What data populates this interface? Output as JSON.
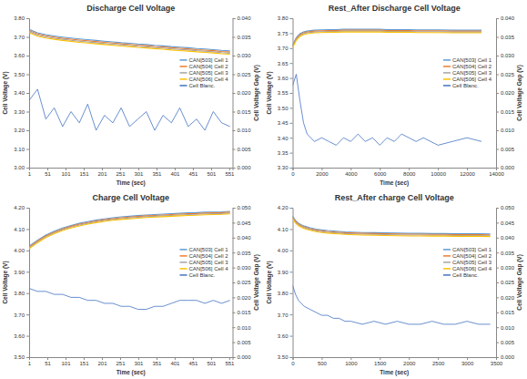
{
  "chart_data": [
    {
      "type": "line",
      "title": "Discharge Cell Voltage",
      "x_label": "Time (sec)",
      "y_label": "Cell Voltage (V)",
      "y2_label": "Cell Voltage Gap (V)",
      "legend": "right",
      "grid": false,
      "x": [
        1,
        24,
        47,
        70,
        93,
        116,
        139,
        162,
        185,
        208,
        231,
        254,
        277,
        300,
        323,
        346,
        369,
        392,
        415,
        438,
        461,
        484,
        507,
        530,
        553
      ],
      "xlim": [
        1,
        560
      ],
      "xticks": [
        1,
        51,
        101,
        151,
        201,
        251,
        301,
        351,
        401,
        451,
        501,
        551
      ],
      "ylim": [
        3.0,
        3.8
      ],
      "yticks": [
        {
          "value": 3.0,
          "label": "3.00"
        },
        {
          "value": 3.1,
          "label": "3.10"
        },
        {
          "value": 3.2,
          "label": "3.20"
        },
        {
          "value": 3.3,
          "label": "3.30"
        },
        {
          "value": 3.4,
          "label": "3.40"
        },
        {
          "value": 3.5,
          "label": "3.50"
        },
        {
          "value": 3.6,
          "label": "3.60"
        },
        {
          "value": 3.7,
          "label": "3.70"
        },
        {
          "value": 3.8,
          "label": "3.80"
        }
      ],
      "y2lim": [
        0,
        0.04
      ],
      "y2ticks": [
        {
          "value": 0,
          "label": "0.000"
        },
        0.005,
        {
          "value": 0.01,
          "label": "0.010"
        },
        0.015,
        {
          "value": 0.02,
          "label": "0.020"
        },
        0.025,
        {
          "value": 0.03,
          "label": "0.030"
        },
        0.035,
        {
          "value": 0.04,
          "label": "0.040"
        }
      ],
      "series": [
        {
          "name": "CAN[503] Cell 1",
          "color": "#5b9bd5",
          "values": [
            3.74,
            3.722,
            3.712,
            3.705,
            3.699,
            3.694,
            3.689,
            3.685,
            3.681,
            3.677,
            3.673,
            3.669,
            3.666,
            3.662,
            3.659,
            3.655,
            3.652,
            3.648,
            3.645,
            3.642,
            3.638,
            3.635,
            3.632,
            3.628,
            3.625
          ]
        },
        {
          "name": "CAN[504] Cell 2",
          "color": "#ed7d31",
          "values": [
            3.734,
            3.716,
            3.706,
            3.699,
            3.693,
            3.688,
            3.683,
            3.679,
            3.675,
            3.671,
            3.667,
            3.663,
            3.66,
            3.656,
            3.653,
            3.649,
            3.646,
            3.642,
            3.639,
            3.636,
            3.632,
            3.629,
            3.626,
            3.622,
            3.619
          ]
        },
        {
          "name": "CAN[505] Cell 3",
          "color": "#a5a5a5",
          "values": [
            3.728,
            3.71,
            3.7,
            3.693,
            3.687,
            3.682,
            3.677,
            3.673,
            3.669,
            3.665,
            3.661,
            3.657,
            3.654,
            3.65,
            3.647,
            3.643,
            3.64,
            3.636,
            3.633,
            3.63,
            3.626,
            3.623,
            3.62,
            3.616,
            3.613
          ]
        },
        {
          "name": "CAN[506] Cell 4",
          "color": "#ffc000",
          "values": [
            3.722,
            3.704,
            3.694,
            3.687,
            3.681,
            3.676,
            3.671,
            3.667,
            3.663,
            3.659,
            3.655,
            3.651,
            3.648,
            3.644,
            3.641,
            3.637,
            3.634,
            3.63,
            3.627,
            3.624,
            3.62,
            3.617,
            3.614,
            3.61,
            3.607
          ]
        },
        {
          "name": "Cell Blanc.",
          "color": "#4472c4",
          "axis": "y2",
          "values": [
            0.018,
            0.021,
            0.013,
            0.016,
            0.011,
            0.015,
            0.012,
            0.017,
            0.01,
            0.014,
            0.012,
            0.016,
            0.011,
            0.013,
            0.015,
            0.01,
            0.014,
            0.012,
            0.016,
            0.011,
            0.013,
            0.01,
            0.015,
            0.012,
            0.011
          ]
        }
      ]
    },
    {
      "type": "line",
      "title": "Rest_After Discharge Cell Voltage",
      "x_label": "Time (sec)",
      "y_label": "Cell Voltage (V)",
      "y2_label": "Cell Voltage Gap (V)",
      "legend": "right",
      "grid": false,
      "x": [
        0,
        250,
        500,
        750,
        1000,
        1500,
        2000,
        2500,
        3000,
        3500,
        4000,
        4500,
        5000,
        5500,
        6000,
        6500,
        7000,
        7500,
        8000,
        8500,
        9000,
        10000,
        11000,
        12000,
        13000
      ],
      "xlim": [
        0,
        14000
      ],
      "xticks": [
        0,
        2000,
        4000,
        6000,
        8000,
        10000,
        12000,
        14000
      ],
      "ylim": [
        3.3,
        3.8
      ],
      "yticks": [
        {
          "value": 3.3,
          "label": "3.30"
        },
        3.35,
        {
          "value": 3.4,
          "label": "3.40"
        },
        3.45,
        {
          "value": 3.5,
          "label": "3.50"
        },
        3.55,
        {
          "value": 3.6,
          "label": "3.60"
        },
        3.65,
        {
          "value": 3.7,
          "label": "3.70"
        },
        3.75,
        {
          "value": 3.8,
          "label": "3.80"
        }
      ],
      "y2lim": [
        0,
        0.04
      ],
      "y2ticks": [
        {
          "value": 0,
          "label": "0.000"
        },
        0.005,
        {
          "value": 0.01,
          "label": "0.010"
        },
        0.015,
        {
          "value": 0.02,
          "label": "0.020"
        },
        0.025,
        {
          "value": 0.03,
          "label": "0.030"
        },
        0.035,
        {
          "value": 0.04,
          "label": "0.040"
        }
      ],
      "series": [
        {
          "name": "CAN[503] Cell 1",
          "color": "#5b9bd5",
          "values": [
            3.71,
            3.735,
            3.748,
            3.754,
            3.757,
            3.76,
            3.761,
            3.762,
            3.762,
            3.763,
            3.763,
            3.763,
            3.763,
            3.763,
            3.763,
            3.762,
            3.762,
            3.762,
            3.762,
            3.761,
            3.761,
            3.761,
            3.76,
            3.76,
            3.76
          ]
        },
        {
          "name": "CAN[504] Cell 2",
          "color": "#ed7d31",
          "values": [
            3.707,
            3.732,
            3.745,
            3.751,
            3.754,
            3.757,
            3.758,
            3.759,
            3.759,
            3.76,
            3.76,
            3.76,
            3.76,
            3.76,
            3.76,
            3.759,
            3.759,
            3.759,
            3.759,
            3.758,
            3.758,
            3.758,
            3.757,
            3.757,
            3.757
          ]
        },
        {
          "name": "CAN[505] Cell 3",
          "color": "#a5a5a5",
          "values": [
            3.704,
            3.729,
            3.742,
            3.748,
            3.751,
            3.754,
            3.755,
            3.756,
            3.756,
            3.757,
            3.757,
            3.757,
            3.757,
            3.757,
            3.757,
            3.756,
            3.756,
            3.756,
            3.756,
            3.755,
            3.755,
            3.755,
            3.754,
            3.754,
            3.754
          ]
        },
        {
          "name": "CAN[506] Cell 4",
          "color": "#ffc000",
          "values": [
            3.701,
            3.726,
            3.739,
            3.745,
            3.748,
            3.751,
            3.752,
            3.753,
            3.753,
            3.754,
            3.754,
            3.754,
            3.754,
            3.754,
            3.754,
            3.753,
            3.753,
            3.753,
            3.753,
            3.752,
            3.752,
            3.752,
            3.751,
            3.751,
            3.751
          ]
        },
        {
          "name": "Cell Blanc.",
          "color": "#4472c4",
          "axis": "y2",
          "values": [
            0.022,
            0.025,
            0.018,
            0.012,
            0.009,
            0.007,
            0.008,
            0.007,
            0.006,
            0.008,
            0.007,
            0.009,
            0.007,
            0.008,
            0.006,
            0.008,
            0.007,
            0.009,
            0.008,
            0.007,
            0.008,
            0.006,
            0.007,
            0.008,
            0.007
          ]
        }
      ]
    },
    {
      "type": "line",
      "title": "Charge Cell Voltage",
      "x_label": "Time (sec)",
      "y_label": "Cell Voltage (V)",
      "y2_label": "Cell Voltage Gap (V)",
      "legend": "right",
      "grid": false,
      "x": [
        1,
        24,
        47,
        70,
        93,
        116,
        139,
        162,
        185,
        208,
        231,
        254,
        277,
        300,
        323,
        346,
        369,
        392,
        415,
        438,
        461,
        484,
        507,
        530,
        553
      ],
      "xlim": [
        1,
        560
      ],
      "xticks": [
        1,
        51,
        101,
        151,
        201,
        251,
        301,
        351,
        401,
        451,
        501,
        551
      ],
      "ylim": [
        3.5,
        4.2
      ],
      "yticks": [
        {
          "value": 3.5,
          "label": "3.50"
        },
        {
          "value": 3.6,
          "label": "3.60"
        },
        {
          "value": 3.7,
          "label": "3.70"
        },
        {
          "value": 3.8,
          "label": "3.80"
        },
        {
          "value": 3.9,
          "label": "3.90"
        },
        {
          "value": 4.0,
          "label": "4.00"
        },
        {
          "value": 4.1,
          "label": "4.10"
        },
        {
          "value": 4.2,
          "label": "4.20"
        }
      ],
      "y2lim": [
        0,
        0.05
      ],
      "y2ticks": [
        {
          "value": 0,
          "label": "0.000"
        },
        0.005,
        {
          "value": 0.01,
          "label": "0.010"
        },
        0.015,
        {
          "value": 0.02,
          "label": "0.020"
        },
        0.025,
        {
          "value": 0.03,
          "label": "0.030"
        },
        0.035,
        {
          "value": 0.04,
          "label": "0.040"
        },
        0.045,
        {
          "value": 0.05,
          "label": "0.050"
        }
      ],
      "series": [
        {
          "name": "CAN[503] Cell 1",
          "color": "#5b9bd5",
          "values": [
            4.02,
            4.048,
            4.072,
            4.09,
            4.105,
            4.117,
            4.127,
            4.135,
            4.142,
            4.148,
            4.153,
            4.157,
            4.16,
            4.163,
            4.166,
            4.168,
            4.17,
            4.172,
            4.174,
            4.176,
            4.177,
            4.179,
            4.18,
            4.181,
            4.183
          ]
        },
        {
          "name": "CAN[504] Cell 2",
          "color": "#ed7d31",
          "values": [
            4.016,
            4.044,
            4.068,
            4.086,
            4.101,
            4.113,
            4.123,
            4.131,
            4.138,
            4.144,
            4.149,
            4.153,
            4.156,
            4.159,
            4.162,
            4.164,
            4.166,
            4.168,
            4.17,
            4.172,
            4.173,
            4.175,
            4.176,
            4.177,
            4.179
          ]
        },
        {
          "name": "CAN[505] Cell 3",
          "color": "#a5a5a5",
          "values": [
            4.012,
            4.04,
            4.064,
            4.082,
            4.097,
            4.109,
            4.119,
            4.127,
            4.134,
            4.14,
            4.145,
            4.149,
            4.152,
            4.155,
            4.158,
            4.16,
            4.162,
            4.164,
            4.166,
            4.168,
            4.169,
            4.171,
            4.172,
            4.173,
            4.175
          ]
        },
        {
          "name": "CAN[506] Cell 4",
          "color": "#ffc000",
          "values": [
            4.008,
            4.036,
            4.06,
            4.078,
            4.093,
            4.105,
            4.115,
            4.123,
            4.13,
            4.136,
            4.141,
            4.145,
            4.148,
            4.151,
            4.154,
            4.156,
            4.158,
            4.16,
            4.162,
            4.164,
            4.165,
            4.167,
            4.168,
            4.169,
            4.171
          ]
        },
        {
          "name": "Cell Blanc.",
          "color": "#4472c4",
          "axis": "y2",
          "values": [
            0.023,
            0.022,
            0.022,
            0.021,
            0.021,
            0.02,
            0.02,
            0.019,
            0.019,
            0.018,
            0.018,
            0.017,
            0.017,
            0.016,
            0.016,
            0.017,
            0.017,
            0.018,
            0.019,
            0.019,
            0.019,
            0.018,
            0.019,
            0.018,
            0.019
          ]
        }
      ]
    },
    {
      "type": "line",
      "title": "Rest_After charge Cell Voltage",
      "x_label": "Time (sec)",
      "y_label": "Cell Voltage (V)",
      "y2_label": "Cell Voltage Gap (V)",
      "legend": "right",
      "grid": false,
      "x": [
        0,
        50,
        100,
        150,
        200,
        300,
        400,
        500,
        600,
        700,
        800,
        900,
        1000,
        1200,
        1400,
        1600,
        1800,
        2000,
        2200,
        2400,
        2600,
        2800,
        3000,
        3200,
        3400
      ],
      "xlim": [
        0,
        3500
      ],
      "xticks": [
        0,
        500,
        1000,
        1500,
        2000,
        2500,
        3000,
        3500
      ],
      "ylim": [
        3.5,
        4.2
      ],
      "yticks": [
        {
          "value": 3.5,
          "label": "3.50"
        },
        {
          "value": 3.6,
          "label": "3.60"
        },
        {
          "value": 3.7,
          "label": "3.70"
        },
        {
          "value": 3.8,
          "label": "3.80"
        },
        {
          "value": 3.9,
          "label": "3.90"
        },
        {
          "value": 4.0,
          "label": "4.00"
        },
        {
          "value": 4.1,
          "label": "4.10"
        },
        {
          "value": 4.2,
          "label": "4.20"
        }
      ],
      "y2lim": [
        0,
        0.05
      ],
      "y2ticks": [
        {
          "value": 0,
          "label": "0.000"
        },
        0.005,
        {
          "value": 0.01,
          "label": "0.010"
        },
        0.015,
        {
          "value": 0.02,
          "label": "0.020"
        },
        0.025,
        {
          "value": 0.03,
          "label": "0.030"
        },
        0.035,
        {
          "value": 0.04,
          "label": "0.040"
        },
        0.045,
        {
          "value": 0.05,
          "label": "0.050"
        }
      ],
      "series": [
        {
          "name": "CAN[503] Cell 1",
          "color": "#5b9bd5",
          "values": [
            4.16,
            4.14,
            4.128,
            4.12,
            4.114,
            4.106,
            4.1,
            4.096,
            4.093,
            4.091,
            4.089,
            4.087,
            4.086,
            4.084,
            4.083,
            4.082,
            4.081,
            4.08,
            4.08,
            4.079,
            4.079,
            4.078,
            4.078,
            4.078,
            4.077
          ]
        },
        {
          "name": "CAN[504] Cell 2",
          "color": "#ed7d31",
          "values": [
            4.156,
            4.136,
            4.124,
            4.116,
            4.11,
            4.102,
            4.096,
            4.092,
            4.089,
            4.087,
            4.085,
            4.083,
            4.082,
            4.08,
            4.079,
            4.078,
            4.077,
            4.076,
            4.076,
            4.075,
            4.075,
            4.074,
            4.074,
            4.074,
            4.073
          ]
        },
        {
          "name": "CAN[505] Cell 3",
          "color": "#a5a5a5",
          "values": [
            4.152,
            4.132,
            4.12,
            4.112,
            4.106,
            4.098,
            4.092,
            4.088,
            4.085,
            4.083,
            4.081,
            4.079,
            4.078,
            4.076,
            4.075,
            4.074,
            4.073,
            4.072,
            4.072,
            4.071,
            4.071,
            4.07,
            4.07,
            4.07,
            4.069
          ]
        },
        {
          "name": "CAN[506] Cell 4",
          "color": "#ffc000",
          "values": [
            4.148,
            4.128,
            4.116,
            4.108,
            4.102,
            4.094,
            4.088,
            4.084,
            4.081,
            4.079,
            4.077,
            4.075,
            4.074,
            4.072,
            4.071,
            4.07,
            4.069,
            4.068,
            4.068,
            4.067,
            4.067,
            4.066,
            4.066,
            4.066,
            4.065
          ]
        },
        {
          "name": "Cell Blanc.",
          "color": "#4472c4",
          "axis": "y2",
          "values": [
            0.024,
            0.021,
            0.019,
            0.018,
            0.017,
            0.016,
            0.015,
            0.014,
            0.014,
            0.013,
            0.013,
            0.012,
            0.012,
            0.011,
            0.012,
            0.011,
            0.012,
            0.011,
            0.011,
            0.012,
            0.011,
            0.011,
            0.012,
            0.011,
            0.011
          ]
        }
      ]
    }
  ]
}
